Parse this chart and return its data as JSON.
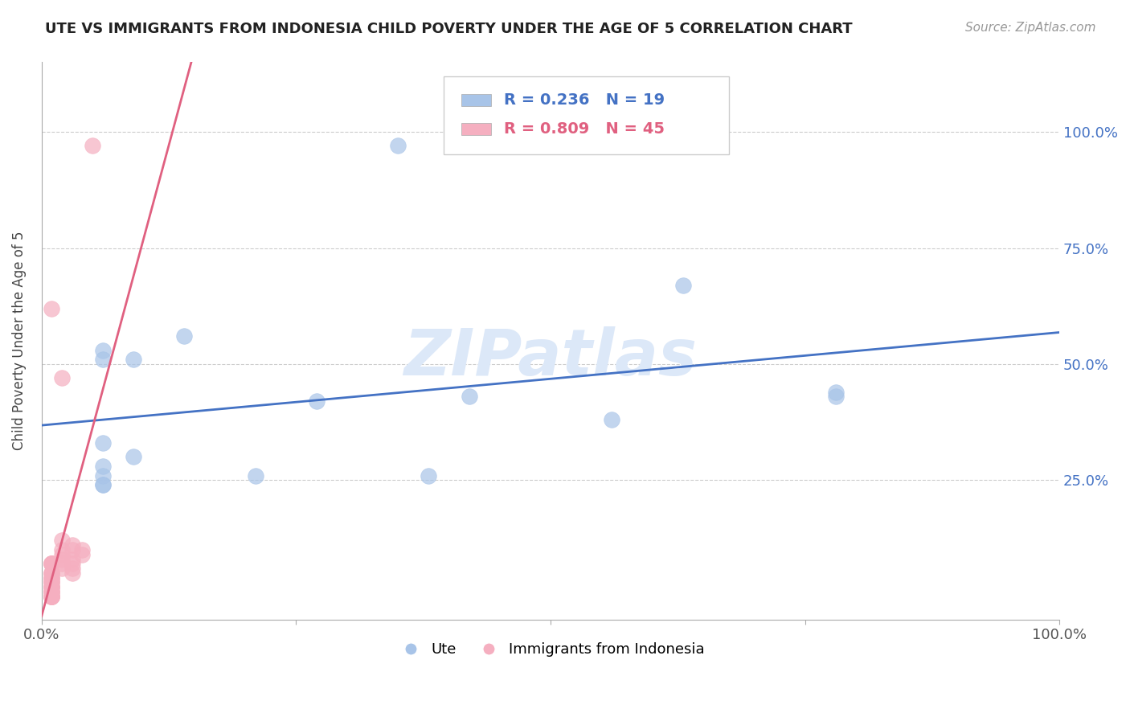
{
  "title": "UTE VS IMMIGRANTS FROM INDONESIA CHILD POVERTY UNDER THE AGE OF 5 CORRELATION CHART",
  "source": "Source: ZipAtlas.com",
  "ylabel": "Child Poverty Under the Age of 5",
  "xlim": [
    0,
    100
  ],
  "ylim": [
    -5,
    115
  ],
  "grid_yticks": [
    25,
    50,
    75,
    100
  ],
  "legend_blue_r": "R = 0.236",
  "legend_blue_n": "N = 19",
  "legend_pink_r": "R = 0.809",
  "legend_pink_n": "N = 45",
  "blue_color": "#a8c4e8",
  "pink_color": "#f5afc0",
  "blue_line_color": "#4472c4",
  "pink_line_color": "#e06080",
  "ute_x": [
    35,
    6,
    6,
    9,
    14,
    6,
    9,
    27,
    6,
    56,
    63,
    42,
    78,
    38,
    21,
    6,
    78,
    6,
    6
  ],
  "ute_y": [
    97,
    53,
    51,
    51,
    56,
    33,
    30,
    42,
    28,
    38,
    67,
    43,
    43,
    26,
    26,
    26,
    44,
    24,
    24
  ],
  "indonesia_x": [
    5,
    1,
    1,
    1,
    1,
    1,
    1,
    1,
    1,
    1,
    1,
    1,
    1,
    1,
    1,
    1,
    1,
    2,
    2,
    2,
    2,
    2,
    2,
    2,
    3,
    3,
    3,
    3,
    3,
    3,
    4,
    4,
    1,
    1,
    1,
    1,
    1,
    1,
    1,
    1,
    1,
    1,
    1,
    1,
    1
  ],
  "indonesia_y": [
    97,
    62,
    7,
    7,
    7,
    7,
    7,
    5,
    5,
    5,
    4,
    4,
    4,
    3,
    3,
    3,
    2,
    47,
    12,
    10,
    9,
    8,
    7,
    6,
    11,
    10,
    8,
    7,
    6,
    5,
    10,
    9,
    2,
    2,
    2,
    1,
    1,
    1,
    1,
    0,
    0,
    0,
    0,
    0,
    0
  ],
  "background_color": "#ffffff",
  "grid_color": "#cccccc",
  "watermark": "ZIPatlas"
}
